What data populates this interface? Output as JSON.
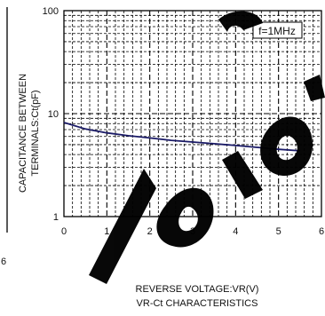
{
  "chart_data": {
    "type": "line",
    "title": "VR-Ct CHARACTERISTICS",
    "xlabel": "REVERSE VOLTAGE:VR(V)",
    "ylabel_lines": [
      "CAPACITANCE BETWEEN",
      "TERMINALS:Ct(pF)"
    ],
    "annotation": "f=1MHz",
    "xlim": [
      0,
      6
    ],
    "ylim": [
      1,
      100
    ],
    "y_scale": "log",
    "grid": true,
    "x_ticks": [
      "0",
      "1",
      "2",
      "3",
      "4",
      "5",
      "6"
    ],
    "y_ticks": [
      {
        "value": 1,
        "label": "1"
      },
      {
        "value": 10,
        "label": "10"
      },
      {
        "value": 100,
        "label": "100"
      }
    ],
    "series": [
      {
        "color": "#1a1a66",
        "x": [
          0,
          0.5,
          1,
          1.5,
          2,
          2.5,
          3,
          3.5,
          4,
          4.5,
          5,
          5.5
        ],
        "y": [
          8.2,
          7.1,
          6.5,
          6.1,
          5.8,
          5.5,
          5.3,
          5.1,
          4.9,
          4.7,
          4.5,
          4.35
        ]
      }
    ],
    "left_margin_fragment": "6"
  }
}
